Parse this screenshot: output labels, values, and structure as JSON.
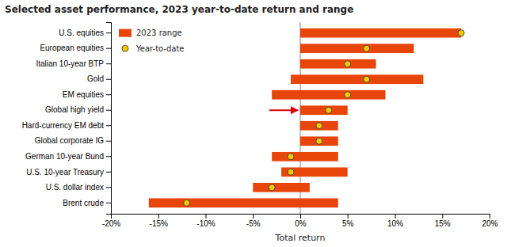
{
  "chart_data": {
    "type": "bar",
    "orientation": "horizontal",
    "title": "Selected asset performance, 2023 year-to-date return and range",
    "xlabel": "Total return",
    "categories": [
      "U.S. equities",
      "European equities",
      "Italian 10-year BTP",
      "Gold",
      "EM equities",
      "Global high yield",
      "Hard-currency EM debt",
      "Global corporate IG",
      "German 10-year Bund",
      "U.S. 10-year Treasury",
      "U.S. dollar index",
      "Brent crude"
    ],
    "series": [
      {
        "name": "2023 range",
        "type": "range",
        "color": "#e8450a",
        "low": [
          0,
          0,
          0,
          -1,
          -3,
          0,
          0,
          0,
          -3,
          -2,
          -5,
          -16
        ],
        "high": [
          17,
          12,
          8,
          13,
          9,
          5,
          4,
          4,
          4,
          5,
          1,
          4
        ]
      },
      {
        "name": "Year-to-date",
        "type": "scatter",
        "marker": "circle",
        "color": "#f5c800",
        "values": [
          17,
          7,
          5,
          7,
          5,
          3,
          2,
          2,
          -1,
          -1,
          -3,
          -12
        ]
      }
    ],
    "xlim": [
      -20,
      20
    ],
    "xticks": [
      {
        "value": -20,
        "label": "-20%"
      },
      {
        "value": -15,
        "label": "-15%"
      },
      {
        "value": -10,
        "label": "-10%"
      },
      {
        "value": -5,
        "label": "-5%"
      },
      {
        "value": 0,
        "label": "0%"
      },
      {
        "value": 5,
        "label": "5%"
      },
      {
        "value": 10,
        "label": "10%"
      },
      {
        "value": 15,
        "label": "15%"
      },
      {
        "value": 20,
        "label": "20%"
      }
    ],
    "annotations": [
      {
        "type": "arrow",
        "category": "Global high yield",
        "color": "#dd0000"
      }
    ],
    "grid": false,
    "legend": "upper left"
  }
}
